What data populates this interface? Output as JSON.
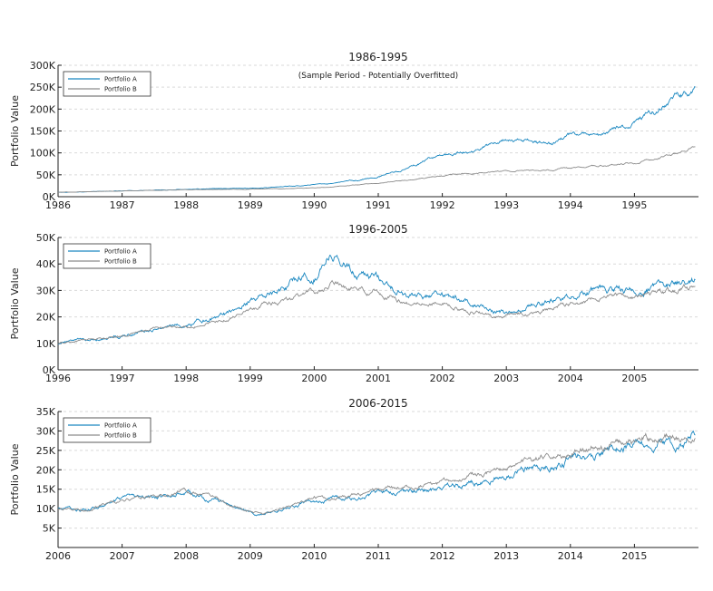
{
  "colors": {
    "portfolio_a": "#1a87c0",
    "portfolio_b": "#8c8c8c",
    "grid": "#d9d9d9",
    "axis": "#222222"
  },
  "chart_data": [
    {
      "type": "line",
      "title": "1986-1995",
      "subtitle": "(Sample Period - Potentially Overfitted)",
      "xlabel": "",
      "ylabel": "Portfolio Value",
      "xlim": [
        1986,
        1996
      ],
      "ylim": [
        0,
        300000
      ],
      "x_ticks": [
        "1986",
        "1987",
        "1988",
        "1989",
        "1990",
        "1991",
        "1992",
        "1993",
        "1994",
        "1995"
      ],
      "y_ticks": [
        "0K",
        "50K",
        "100K",
        "150K",
        "200K",
        "250K",
        "300K"
      ],
      "legend": [
        "Portfolio A",
        "Portfolio B"
      ],
      "legend_position": "top-left",
      "grid": "horizontal-dashed",
      "series": [
        {
          "name": "Portfolio A",
          "noise": 0.02,
          "points": [
            [
              1986,
              10000
            ],
            [
              1987,
              13000
            ],
            [
              1988,
              17000
            ],
            [
              1989,
              19000
            ],
            [
              1990,
              28000
            ],
            [
              1990.6,
              37000
            ],
            [
              1991,
              45000
            ],
            [
              1991.5,
              68000
            ],
            [
              1992,
              95000
            ],
            [
              1992.5,
              105000
            ],
            [
              1993,
              130000
            ],
            [
              1993.7,
              120000
            ],
            [
              1994,
              138000
            ],
            [
              1994.5,
              140000
            ],
            [
              1995,
              170000
            ],
            [
              1995.6,
              215000
            ],
            [
              1995.95,
              248000
            ]
          ]
        },
        {
          "name": "Portfolio B",
          "noise": 0.015,
          "points": [
            [
              1986,
              10000
            ],
            [
              1987,
              13000
            ],
            [
              1988,
              16000
            ],
            [
              1989,
              17000
            ],
            [
              1990,
              20000
            ],
            [
              1991,
              30000
            ],
            [
              1992,
              48000
            ],
            [
              1993,
              58000
            ],
            [
              1994,
              65000
            ],
            [
              1995,
              78000
            ],
            [
              1995.6,
              95000
            ],
            [
              1995.95,
              112000
            ]
          ]
        }
      ]
    },
    {
      "type": "line",
      "title": "1996-2005",
      "xlabel": "",
      "ylabel": "Portfolio Value",
      "xlim": [
        1996,
        2006
      ],
      "ylim": [
        0,
        50000
      ],
      "x_ticks": [
        "1996",
        "1997",
        "1998",
        "1999",
        "2000",
        "2001",
        "2002",
        "2003",
        "2004",
        "2005"
      ],
      "y_ticks": [
        "0K",
        "10K",
        "20K",
        "30K",
        "40K",
        "50K"
      ],
      "legend": [
        "Portfolio A",
        "Portfolio B"
      ],
      "legend_position": "top-left",
      "grid": "horizontal-dashed",
      "series": [
        {
          "name": "Portfolio A",
          "noise": 0.025,
          "points": [
            [
              1996,
              10000
            ],
            [
              1997,
              13000
            ],
            [
              1997.5,
              16000
            ],
            [
              1998,
              17000
            ],
            [
              1998.6,
              21000
            ],
            [
              1999,
              27000
            ],
            [
              1999.5,
              31000
            ],
            [
              2000,
              36000
            ],
            [
              2000.25,
              45000
            ],
            [
              2000.6,
              39000
            ],
            [
              2001,
              34000
            ],
            [
              2001.5,
              28000
            ],
            [
              2002,
              28000
            ],
            [
              2002.5,
              25000
            ],
            [
              2002.8,
              22000
            ],
            [
              2003,
              21000
            ],
            [
              2003.5,
              25000
            ],
            [
              2004,
              28000
            ],
            [
              2004.5,
              30000
            ],
            [
              2005,
              31000
            ],
            [
              2005.5,
              33000
            ],
            [
              2005.95,
              34500
            ]
          ]
        },
        {
          "name": "Portfolio B",
          "noise": 0.02,
          "points": [
            [
              1996,
              10000
            ],
            [
              1997,
              13000
            ],
            [
              1997.5,
              15500
            ],
            [
              1998,
              16000
            ],
            [
              1998.6,
              19000
            ],
            [
              1999,
              24000
            ],
            [
              1999.5,
              26000
            ],
            [
              2000,
              29000
            ],
            [
              2000.25,
              32000
            ],
            [
              2000.6,
              31000
            ],
            [
              2001,
              29000
            ],
            [
              2001.5,
              25000
            ],
            [
              2002,
              25500
            ],
            [
              2002.5,
              22000
            ],
            [
              2002.8,
              19500
            ],
            [
              2003,
              20000
            ],
            [
              2003.5,
              22000
            ],
            [
              2004,
              25000
            ],
            [
              2004.5,
              27000
            ],
            [
              2005,
              28000
            ],
            [
              2005.5,
              29500
            ],
            [
              2005.95,
              31500
            ]
          ]
        }
      ]
    },
    {
      "type": "line",
      "title": "2006-2015",
      "xlabel": "",
      "ylabel": "Portfolio Value",
      "xlim": [
        2006,
        2016
      ],
      "ylim": [
        0,
        35000
      ],
      "x_ticks": [
        "2006",
        "2007",
        "2008",
        "2009",
        "2010",
        "2011",
        "2012",
        "2013",
        "2014",
        "2015"
      ],
      "y_ticks": [
        "5K",
        "10K",
        "15K",
        "20K",
        "25K",
        "30K",
        "35K"
      ],
      "y_tick_values": [
        5000,
        10000,
        15000,
        20000,
        25000,
        30000,
        35000
      ],
      "legend": [
        "Portfolio A",
        "Portfolio B"
      ],
      "legend_position": "top-left",
      "grid": "horizontal-dashed",
      "series": [
        {
          "name": "Portfolio A",
          "noise": 0.025,
          "points": [
            [
              2006,
              10000
            ],
            [
              2006.5,
              9500
            ],
            [
              2007,
              12000
            ],
            [
              2007.5,
              13000
            ],
            [
              2008,
              14000
            ],
            [
              2008.5,
              12000
            ],
            [
              2008.8,
              10000
            ],
            [
              2009,
              9000
            ],
            [
              2009.2,
              8000
            ],
            [
              2009.5,
              10000
            ],
            [
              2010,
              12000
            ],
            [
              2010.5,
              12500
            ],
            [
              2011,
              14000
            ],
            [
              2011.5,
              14500
            ],
            [
              2012,
              15000
            ],
            [
              2012.5,
              17000
            ],
            [
              2013,
              19000
            ],
            [
              2013.5,
              21000
            ],
            [
              2014,
              23000
            ],
            [
              2014.5,
              24500
            ],
            [
              2015,
              26000
            ],
            [
              2015.5,
              28000
            ],
            [
              2015.7,
              25500
            ],
            [
              2015.95,
              29500
            ]
          ]
        },
        {
          "name": "Portfolio B",
          "noise": 0.02,
          "points": [
            [
              2006,
              10000
            ],
            [
              2006.5,
              9800
            ],
            [
              2007,
              12300
            ],
            [
              2007.5,
              13200
            ],
            [
              2008,
              14500
            ],
            [
              2008.5,
              12500
            ],
            [
              2008.8,
              10500
            ],
            [
              2009,
              9500
            ],
            [
              2009.2,
              8500
            ],
            [
              2009.5,
              10300
            ],
            [
              2010,
              12500
            ],
            [
              2010.5,
              13000
            ],
            [
              2011,
              14800
            ],
            [
              2011.5,
              15500
            ],
            [
              2012,
              16500
            ],
            [
              2012.5,
              18500
            ],
            [
              2013,
              20500
            ],
            [
              2013.5,
              22500
            ],
            [
              2014,
              24500
            ],
            [
              2014.5,
              26000
            ],
            [
              2015,
              28000
            ],
            [
              2015.5,
              29000
            ],
            [
              2015.7,
              27500
            ],
            [
              2015.95,
              30000
            ]
          ]
        }
      ]
    }
  ]
}
